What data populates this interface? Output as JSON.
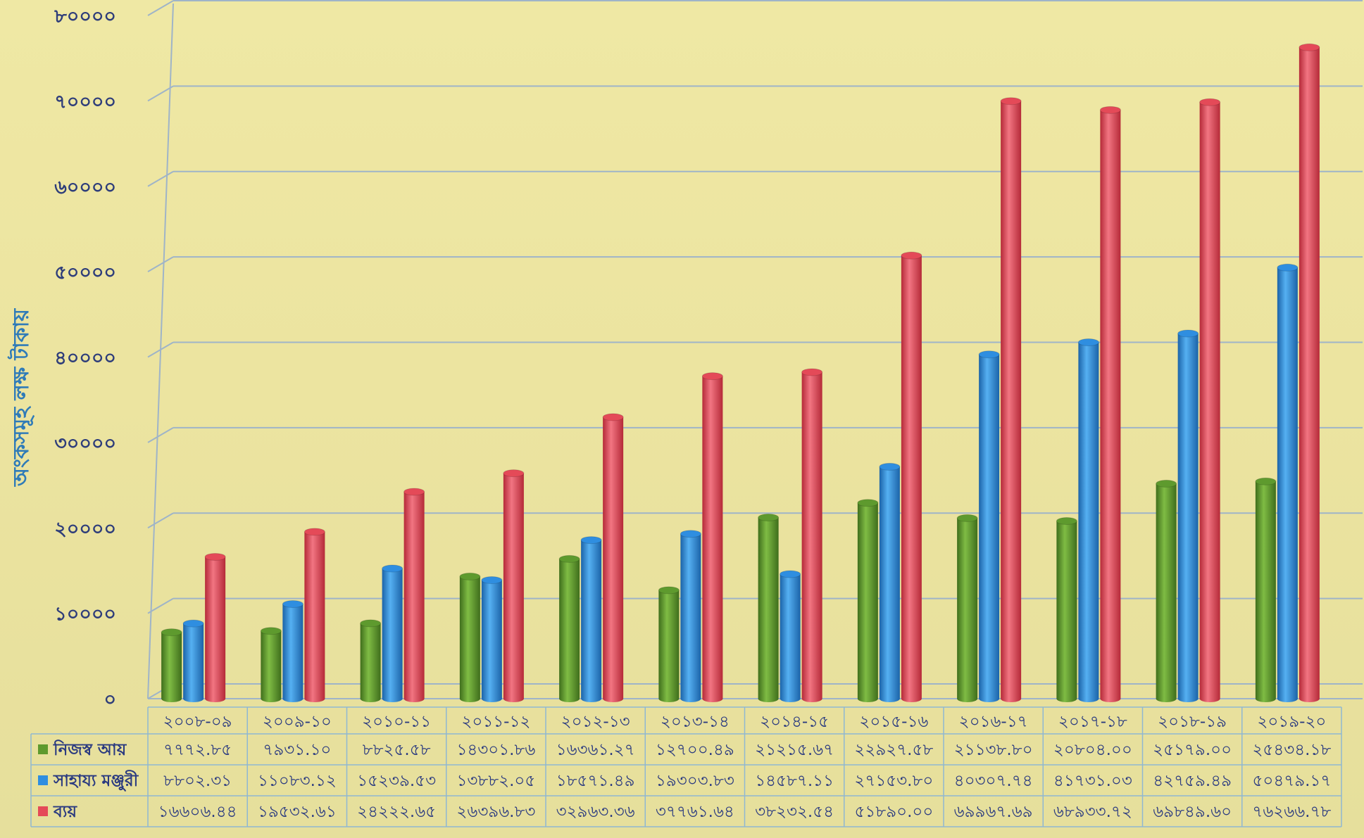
{
  "chart_data": {
    "type": "bar",
    "ylabel": "অংকসমূহ লক্ষ টাকায়",
    "ylim": [
      0,
      80000
    ],
    "yticks": [
      0,
      10000,
      20000,
      30000,
      40000,
      50000,
      60000,
      70000,
      80000
    ],
    "ytick_labels": [
      "০",
      "১০০০০",
      "২০০০০",
      "৩০০০০",
      "৪০০০০",
      "৫০০০০",
      "৬০০০০",
      "৭০০০০",
      "৮০০০০"
    ],
    "grid": true,
    "legend_placement": "table-left",
    "categories": [
      "২০০৮-০৯",
      "২০০৯-১০",
      "২০১০-১১",
      "২০১১-১২",
      "২০১২-১৩",
      "২০১৩-১৪",
      "২০১৪-১৫",
      "২০১৫-১৬",
      "২০১৬-১৭",
      "২০১৭-১৮",
      "২০১৮-১৯",
      "২০১৯-২০"
    ],
    "series": [
      {
        "name": "নিজস্ব আয়",
        "color": "#5e9a2e",
        "values": [
          7772.85,
          7931.1,
          8825.58,
          14301.86,
          16361.27,
          12700.49,
          21215.67,
          22927.58,
          21138.8,
          20804.0,
          25179.0,
          25434.18
        ],
        "labels": [
          "৭৭৭২.৮৫",
          "৭৯৩১.১০",
          "৮৮২৫.৫৮",
          "১৪৩০১.৮৬",
          "১৬৩৬১.২৭",
          "১২৭০০.৪৯",
          "২১২১৫.৬৭",
          "২২৯২৭.৫৮",
          "২১১৩৮.৮০",
          "২০৮০৪.০০",
          "২৫১৭৯.০০",
          "২৫৪৩৪.১৮"
        ]
      },
      {
        "name": "সাহায্য মঞ্জুরী",
        "color": "#2f8ee0",
        "values": [
          8802.31,
          11083.12,
          15239.53,
          13882.05,
          18571.49,
          19303.83,
          14587.11,
          27153.8,
          40307.74,
          41731.03,
          42759.49,
          50479.17
        ],
        "labels": [
          "৮৮০২.৩১",
          "১১০৮৩.১২",
          "১৫২৩৯.৫৩",
          "১৩৮৮২.০৫",
          "১৮৫৭১.৪৯",
          "১৯৩০৩.৮৩",
          "১৪৫৮৭.১১",
          "২৭১৫৩.৮০",
          "৪০৩০৭.৭৪",
          "৪১৭৩১.০৩",
          "৪২৭৫৯.৪৯",
          "৫০৪৭৯.১৭"
        ]
      },
      {
        "name": "ব্যয়",
        "color": "#e44a58",
        "values": [
          16606.44,
          19532.61,
          24222.65,
          26396.83,
          32963.36,
          37761.64,
          38232.54,
          51890.0,
          69967.69,
          68933.72,
          69849.6,
          76266.78
        ],
        "labels": [
          "১৬৬০৬.৪৪",
          "১৯৫৩২.৬১",
          "২৪২২২.৬৫",
          "২৬৩৯৬.৮৩",
          "৩২৯৬৩.৩৬",
          "৩৭৭৬১.৬৪",
          "৩৮২৩২.৫৪",
          "৫১৮৯০.০০",
          "৬৯৯৬৭.৬৯",
          "৬৮৯৩৩.৭২",
          "৬৯৮৪৯.৬০",
          "৭৬২৬৬.৭৮"
        ]
      }
    ]
  }
}
